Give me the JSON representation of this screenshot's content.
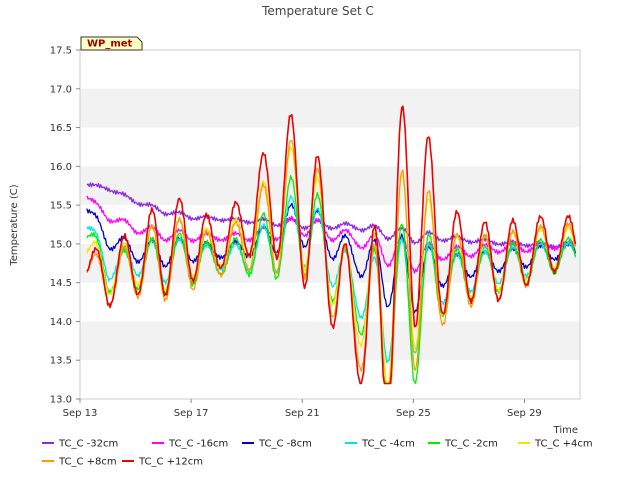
{
  "chart_data": {
    "type": "line",
    "title": "Temperature Set C",
    "xlabel": "Time",
    "ylabel": "Temperature (C)",
    "ylim": [
      13.0,
      17.5
    ],
    "xlim": [
      "2023-09-13",
      "2023-10-01"
    ],
    "x_ticks": [
      {
        "date": "2023-09-13",
        "label": "Sep 13"
      },
      {
        "date": "2023-09-17",
        "label": "Sep 17"
      },
      {
        "date": "2023-09-21",
        "label": "Sep 21"
      },
      {
        "date": "2023-09-25",
        "label": "Sep 25"
      },
      {
        "date": "2023-09-29",
        "label": "Sep 29"
      }
    ],
    "y_ticks": [
      "13.0",
      "13.5",
      "14.0",
      "14.5",
      "15.0",
      "15.5",
      "16.0",
      "16.5",
      "17.0",
      "17.5"
    ],
    "grid": "alternating horizontal bands",
    "annotation": "WP_met",
    "legend_position": "bottom",
    "x": [
      "2023-09-13",
      "2023-09-14",
      "2023-09-15",
      "2023-09-16",
      "2023-09-17",
      "2023-09-18",
      "2023-09-19",
      "2023-09-20",
      "2023-09-21",
      "2023-09-22",
      "2023-09-23",
      "2023-09-24",
      "2023-09-25",
      "2023-09-26",
      "2023-09-27",
      "2023-09-28",
      "2023-09-29",
      "2023-09-30"
    ],
    "series": [
      {
        "name": "TC_C -32cm",
        "color": "#8a2be2",
        "values": [
          15.78,
          15.72,
          15.55,
          15.42,
          15.35,
          15.32,
          15.3,
          15.28,
          15.26,
          15.24,
          15.22,
          15.15,
          15.1,
          15.08,
          15.05,
          15.02,
          15.0,
          14.98
        ]
      },
      {
        "name": "TC_C -16cm",
        "color": "#ff00ff",
        "values": [
          15.7,
          15.35,
          15.2,
          15.12,
          15.1,
          15.08,
          15.1,
          15.15,
          15.25,
          15.15,
          15.05,
          14.92,
          14.85,
          14.88,
          14.9,
          14.95,
          14.95,
          14.98
        ]
      },
      {
        "name": "TC_C -8cm",
        "color": "#0000cc",
        "values": [
          15.6,
          15.05,
          14.9,
          14.88,
          14.92,
          14.9,
          14.95,
          15.1,
          15.3,
          15.05,
          14.8,
          14.65,
          14.6,
          14.65,
          14.72,
          14.78,
          14.82,
          14.9
        ]
      },
      {
        "name": "TC_C -4cm",
        "color": "#00e5e5",
        "values": [
          15.45,
          14.7,
          14.8,
          14.78,
          14.82,
          14.8,
          14.85,
          15.0,
          15.25,
          14.85,
          14.4,
          14.2,
          14.35,
          14.55,
          14.62,
          14.7,
          14.78,
          14.85
        ]
      },
      {
        "name": "TC_C -2cm",
        "color": "#00ee00",
        "values": [
          15.35,
          14.6,
          14.7,
          14.75,
          14.8,
          14.78,
          14.88,
          15.05,
          15.35,
          14.8,
          14.3,
          14.1,
          14.25,
          14.5,
          14.6,
          14.68,
          14.75,
          14.85
        ]
      },
      {
        "name": "TC_C +4cm",
        "color": "#f2e600",
        "values": [
          15.1,
          14.6,
          14.8,
          14.85,
          14.95,
          14.9,
          15.15,
          15.45,
          15.55,
          14.85,
          14.2,
          14.3,
          14.9,
          14.6,
          14.7,
          14.75,
          14.85,
          14.95
        ]
      },
      {
        "name": "TC_C +8cm",
        "color": "#ff9900",
        "values": [
          14.8,
          14.5,
          14.7,
          14.8,
          14.85,
          14.82,
          15.05,
          15.3,
          15.6,
          14.8,
          14.0,
          13.95,
          14.85,
          14.55,
          14.65,
          14.7,
          14.82,
          14.95
        ]
      },
      {
        "name": "TC_C +12cm",
        "color": "#ee0000",
        "values": [
          14.8,
          14.55,
          14.8,
          14.95,
          15.05,
          14.95,
          15.3,
          15.65,
          15.65,
          14.8,
          13.9,
          14.1,
          15.7,
          14.8,
          14.8,
          14.75,
          14.9,
          15.0
        ]
      }
    ]
  }
}
